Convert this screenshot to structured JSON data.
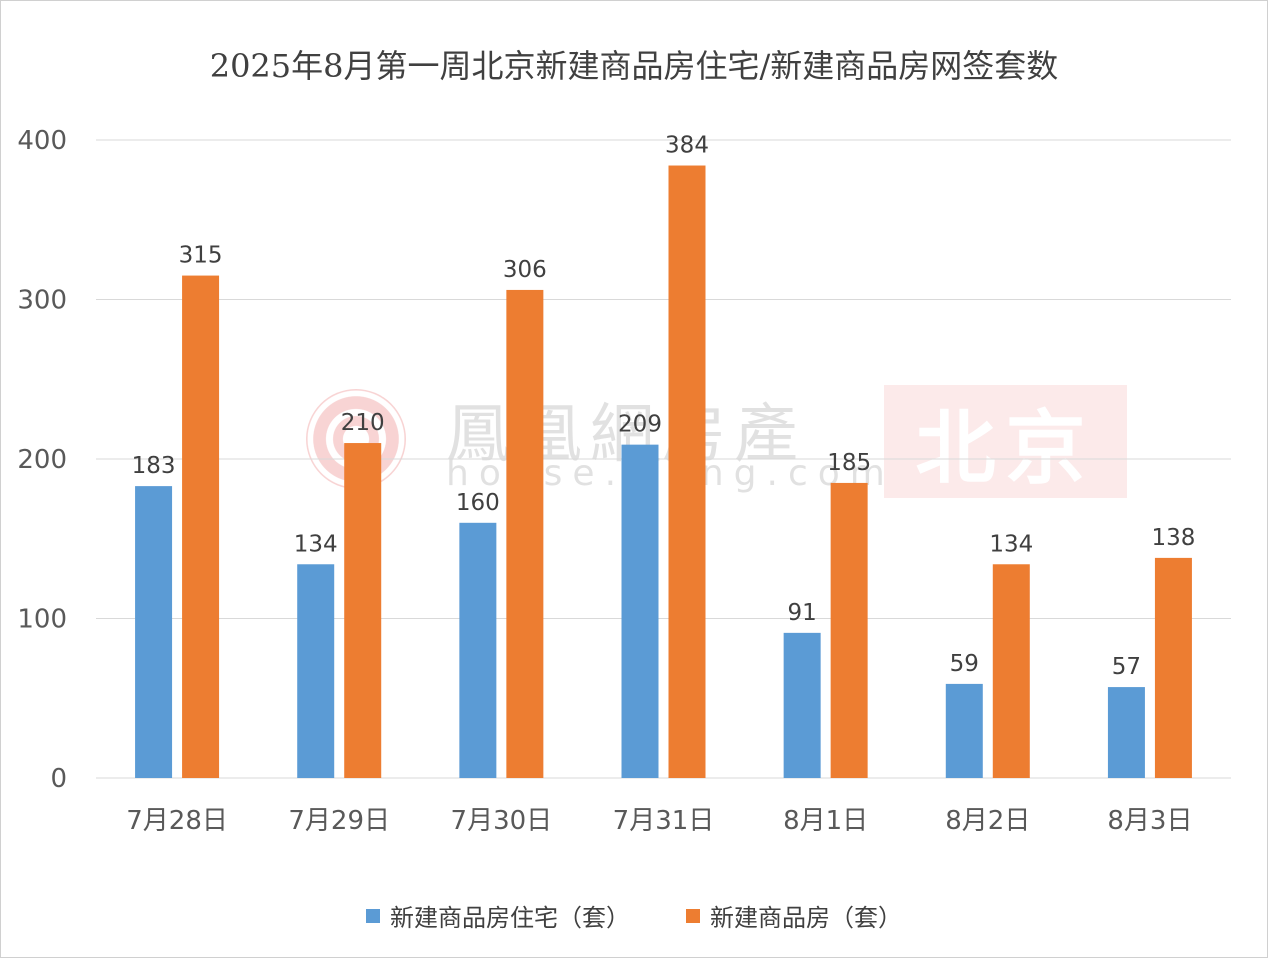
{
  "chart_data": {
    "type": "bar",
    "title": "2025年8月第一周北京新建商品房住宅/新建商品房网签套数",
    "categories": [
      "7月28日",
      "7月29日",
      "7月30日",
      "7月31日",
      "8月1日",
      "8月2日",
      "8月3日"
    ],
    "series": [
      {
        "name": "新建商品房住宅（套）",
        "color": "#5b9bd5",
        "values": [
          183,
          134,
          160,
          209,
          91,
          59,
          57
        ]
      },
      {
        "name": "新建商品房（套）",
        "color": "#ed7d31",
        "values": [
          315,
          210,
          306,
          384,
          185,
          134,
          138
        ]
      }
    ],
    "ylim": [
      0,
      400
    ],
    "yticks": [
      0,
      100,
      200,
      300,
      400
    ],
    "grid": true,
    "legend_position": "bottom",
    "xlabel": "",
    "ylabel": ""
  },
  "watermark": {
    "name": "鳳凰網房產",
    "url": "house.ifeng.com",
    "city": "北京"
  }
}
